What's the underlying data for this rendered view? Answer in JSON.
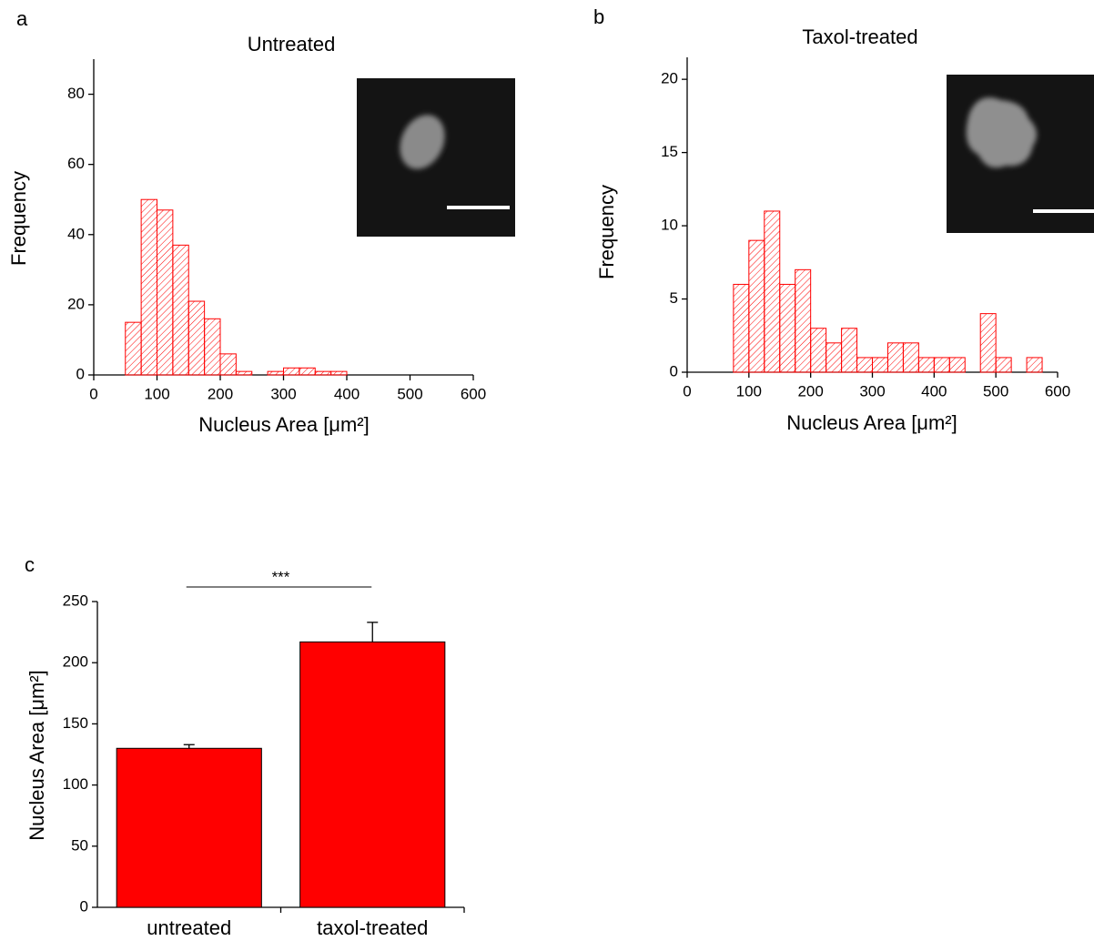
{
  "chart_data": [
    {
      "type": "histogram",
      "panel_label": "a",
      "title": "Untreated",
      "x_label": "Nucleus Area [μm²]",
      "y_label": "Frequency",
      "bins": [
        50,
        75,
        100,
        125,
        150,
        175,
        200,
        225,
        250,
        275,
        300,
        325,
        350,
        375,
        400
      ],
      "values": [
        15,
        50,
        47,
        37,
        21,
        16,
        6,
        1,
        0,
        1,
        2,
        2,
        1,
        1
      ],
      "color": "#ff0000",
      "hatch": true,
      "xlim": [
        0,
        600
      ],
      "xticks": [
        0,
        100,
        200,
        300,
        400,
        500,
        600
      ],
      "ylim": [
        0,
        90
      ],
      "yticks": [
        0,
        20,
        40,
        60,
        80
      ]
    },
    {
      "type": "histogram",
      "panel_label": "b",
      "title": "Taxol-treated",
      "x_label": "Nucleus Area [μm²]",
      "y_label": "Frequency",
      "bins": [
        75,
        100,
        125,
        150,
        175,
        200,
        225,
        250,
        275,
        300,
        325,
        350,
        375,
        400,
        425,
        450,
        475,
        500,
        525,
        550,
        575
      ],
      "values": [
        6,
        9,
        11,
        6,
        7,
        3,
        2,
        3,
        1,
        1,
        2,
        2,
        1,
        1,
        1,
        0,
        4,
        1,
        0,
        1
      ],
      "color": "#ff0000",
      "hatch": true,
      "xlim": [
        0,
        600
      ],
      "xticks": [
        0,
        100,
        200,
        300,
        400,
        500,
        600
      ],
      "ylim": [
        0,
        21.5
      ],
      "yticks": [
        0,
        5,
        10,
        15,
        20
      ]
    },
    {
      "type": "bar",
      "panel_label": "c",
      "y_label": "Nucleus Area [μm²]",
      "categories": [
        "untreated",
        "taxol-treated"
      ],
      "values": [
        130,
        217
      ],
      "errors": [
        3,
        16
      ],
      "color": "#ff0000",
      "annotation": "***",
      "ylim": [
        0,
        250
      ],
      "yticks": [
        0,
        50,
        100,
        150,
        200,
        250
      ]
    }
  ]
}
